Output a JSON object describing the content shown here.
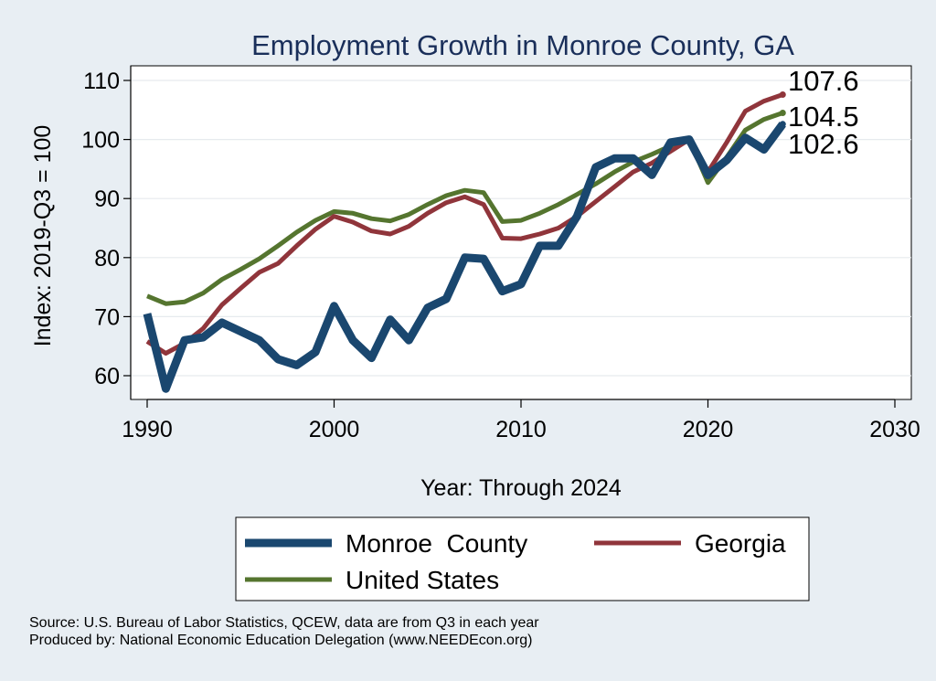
{
  "chart_data": {
    "type": "line",
    "title": "Employment Growth in Monroe County, GA",
    "xlabel": "Year: Through 2024",
    "ylabel": "Index: 2019-Q3 = 100",
    "xlim": [
      1990,
      2030
    ],
    "ylim": [
      55,
      113
    ],
    "x_ticks": [
      1990,
      2000,
      2010,
      2020,
      2030
    ],
    "y_ticks": [
      60,
      70,
      80,
      90,
      100,
      110
    ],
    "grid": true,
    "legend_position": "bottom",
    "x": [
      1990,
      1991,
      1992,
      1993,
      1994,
      1995,
      1996,
      1997,
      1998,
      1999,
      2000,
      2001,
      2002,
      2003,
      2004,
      2005,
      2006,
      2007,
      2008,
      2009,
      2010,
      2011,
      2012,
      2013,
      2014,
      2015,
      2016,
      2017,
      2018,
      2019,
      2020,
      2021,
      2022,
      2023,
      2024
    ],
    "series": [
      {
        "name": "Monroe  County",
        "color": "#1a476f",
        "values": [
          70.5,
          57.8,
          66.0,
          66.5,
          69.0,
          67.5,
          66.0,
          62.8,
          61.8,
          64.0,
          71.8,
          66.0,
          63.0,
          69.5,
          66.0,
          71.5,
          73.0,
          80.0,
          79.8,
          74.3,
          75.5,
          82.0,
          82.0,
          87.0,
          95.3,
          96.8,
          96.8,
          94.0,
          99.5,
          100.0,
          94.0,
          96.5,
          100.3,
          98.3,
          102.6
        ],
        "end_label": "102.6"
      },
      {
        "name": "Georgia",
        "color": "#90353b",
        "values": [
          65.8,
          63.8,
          65.5,
          68.0,
          72.0,
          74.8,
          77.5,
          79.0,
          82.0,
          84.8,
          87.0,
          86.0,
          84.5,
          84.0,
          85.3,
          87.5,
          89.3,
          90.3,
          89.0,
          83.3,
          83.2,
          84.0,
          85.0,
          87.0,
          89.5,
          92.0,
          94.5,
          96.0,
          98.0,
          100.0,
          94.5,
          99.5,
          104.8,
          106.5,
          107.6
        ],
        "end_label": "107.6"
      },
      {
        "name": "United States",
        "color": "#55752f",
        "values": [
          73.5,
          72.2,
          72.5,
          74.0,
          76.3,
          78.0,
          79.8,
          82.0,
          84.3,
          86.3,
          87.8,
          87.5,
          86.6,
          86.2,
          87.3,
          89.0,
          90.5,
          91.4,
          91.0,
          86.1,
          86.3,
          87.5,
          89.0,
          90.7,
          92.5,
          94.5,
          96.2,
          97.5,
          98.9,
          100.0,
          92.7,
          97.0,
          101.6,
          103.4,
          104.5
        ],
        "end_label": "104.5"
      }
    ]
  },
  "notes": {
    "source": "Source: U.S. Bureau of Labor Statistics, QCEW, data are from Q3 in each year",
    "produced_by": "Produced by: National Economic Education Delegation (www.NEEDEcon.org)"
  }
}
